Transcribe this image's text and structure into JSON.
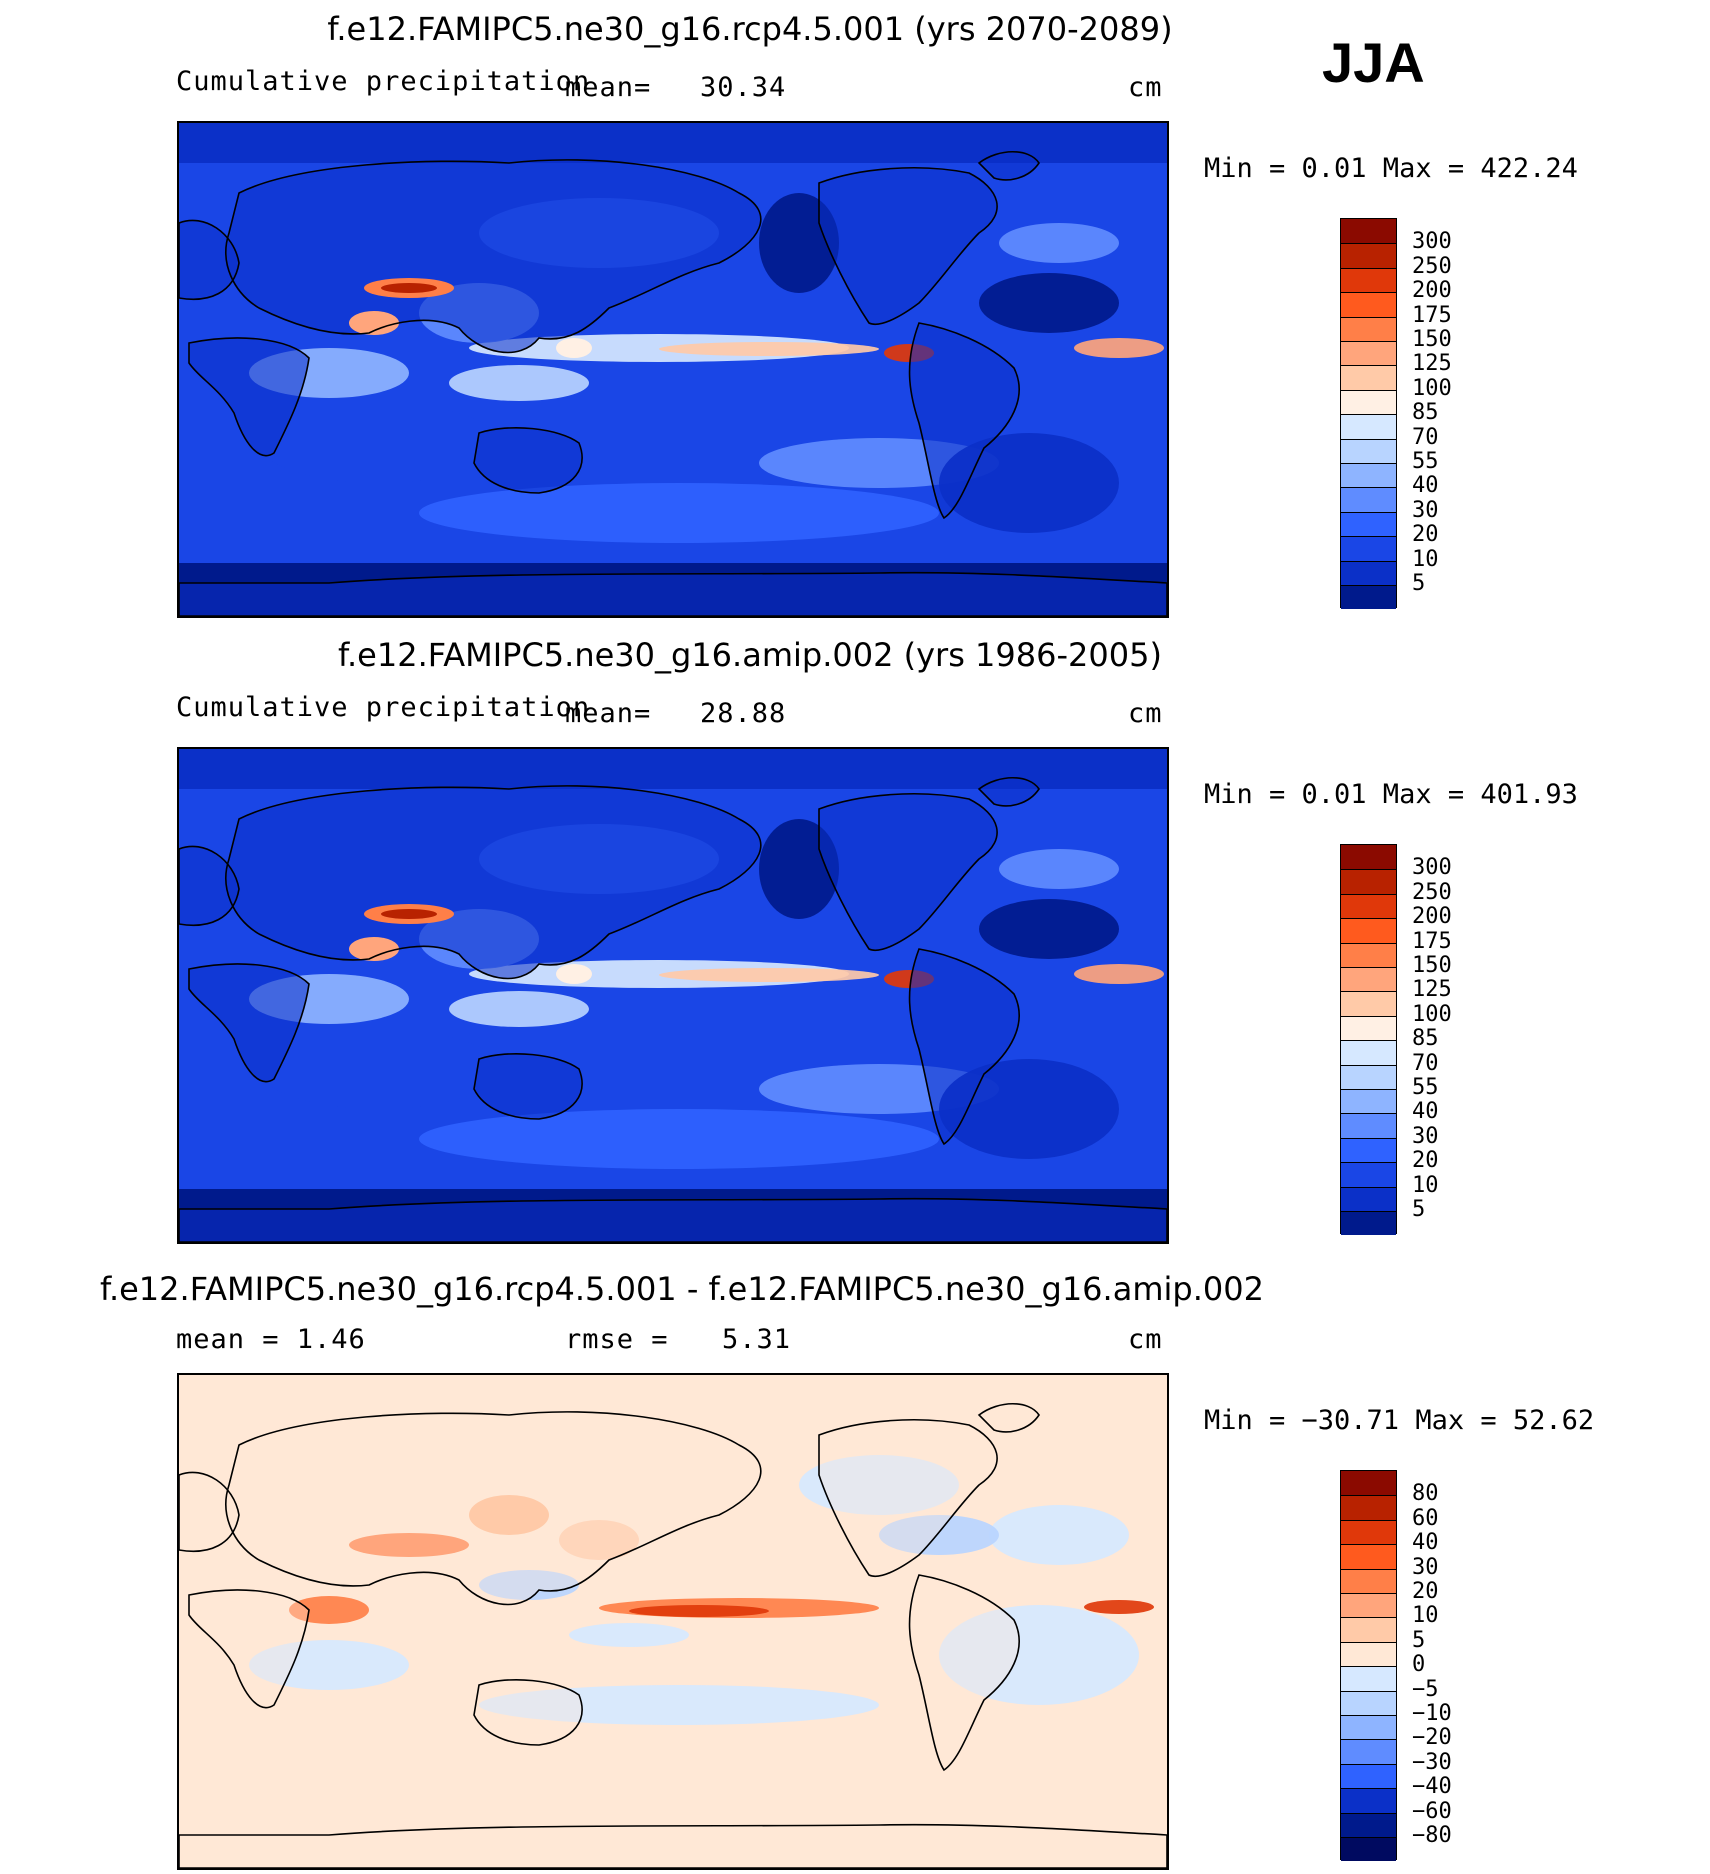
{
  "season": "JJA",
  "panels": [
    {
      "title": "f.e12.FAMIPC5.ne30_g16.rcp4.5.001 (yrs 2070-2089)",
      "left_label": "Cumulative precipitation",
      "mid_label": "mean=",
      "mid_value": "30.34",
      "unit": "cm",
      "minmax": "Min =    0.01  Max  =  422.24",
      "kind": "precip",
      "colorbar": {
        "labels": [
          "300",
          "250",
          "200",
          "175",
          "150",
          "125",
          "100",
          "85",
          "70",
          "55",
          "40",
          "30",
          "20",
          "10",
          "5"
        ],
        "colors": [
          "#8b0a00",
          "#b82200",
          "#e0380a",
          "#ff5a1e",
          "#ff7f48",
          "#ffa57c",
          "#ffcaa8",
          "#fff0e4",
          "#d6e8ff",
          "#b8d4ff",
          "#8eb4ff",
          "#5f8cff",
          "#2f62ff",
          "#1a46e6",
          "#0b30c8",
          "#001a8c"
        ]
      }
    },
    {
      "title": "f.e12.FAMIPC5.ne30_g16.amip.002 (yrs 1986-2005)",
      "left_label": "Cumulative precipitation",
      "mid_label": "mean=",
      "mid_value": "28.88",
      "unit": "cm",
      "minmax": "Min =    0.01  Max  =  401.93",
      "kind": "precip",
      "colorbar": {
        "labels": [
          "300",
          "250",
          "200",
          "175",
          "150",
          "125",
          "100",
          "85",
          "70",
          "55",
          "40",
          "30",
          "20",
          "10",
          "5"
        ],
        "colors": [
          "#8b0a00",
          "#b82200",
          "#e0380a",
          "#ff5a1e",
          "#ff7f48",
          "#ffa57c",
          "#ffcaa8",
          "#fff0e4",
          "#d6e8ff",
          "#b8d4ff",
          "#8eb4ff",
          "#5f8cff",
          "#2f62ff",
          "#1a46e6",
          "#0b30c8",
          "#001a8c"
        ]
      }
    },
    {
      "title": "f.e12.FAMIPC5.ne30_g16.rcp4.5.001 - f.e12.FAMIPC5.ne30_g16.amip.002",
      "left_label": "mean =    1.46",
      "mid_label": "rmse =",
      "mid_value": "5.31",
      "unit": "cm",
      "minmax": "Min = −30.71  Max  =   52.62",
      "kind": "diff",
      "colorbar": {
        "labels": [
          "80",
          "60",
          "40",
          "30",
          "20",
          "10",
          "5",
          "0",
          "−5",
          "−10",
          "−20",
          "−30",
          "−40",
          "−60",
          "−80"
        ],
        "colors": [
          "#8b0a00",
          "#b82200",
          "#e0380a",
          "#ff5a1e",
          "#ff7f48",
          "#ffa57c",
          "#ffcaa8",
          "#ffe8d6",
          "#d6e8ff",
          "#b8d4ff",
          "#8eb4ff",
          "#5f8cff",
          "#2f62ff",
          "#0b30c8",
          "#001a8c",
          "#000a60"
        ]
      }
    }
  ]
}
